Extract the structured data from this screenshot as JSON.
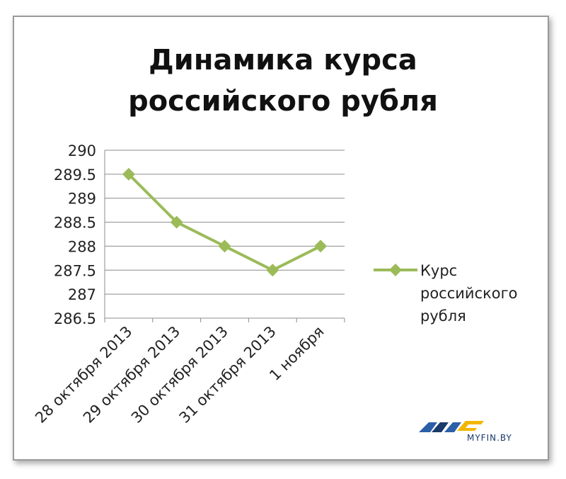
{
  "chart_data": {
    "type": "line",
    "title_lines": [
      "Динамика курса",
      "российского рубля"
    ],
    "categories": [
      "28 октября 2013",
      "29 октября 2013",
      "30 октября 2013",
      "31 октября 2013",
      "1 ноября"
    ],
    "series": [
      {
        "name": "Курс российского рубля",
        "values": [
          289.5,
          288.5,
          288.0,
          287.5,
          288.0
        ],
        "color": "#9bbb59"
      }
    ],
    "ylim": [
      286.5,
      290
    ],
    "yticks": [
      "286.5",
      "287",
      "287.5",
      "288",
      "288.5",
      "289",
      "289.5",
      "290"
    ],
    "grid": true,
    "legend_placement": "right",
    "legend_lines": [
      "Курс",
      "российского",
      "рубля"
    ]
  },
  "logo": {
    "text": "MYFIN.BY",
    "colors": [
      "#2b5fa8",
      "#f2b600",
      "#1a3a6b"
    ],
    "icon": "myfin-logo-icon"
  }
}
